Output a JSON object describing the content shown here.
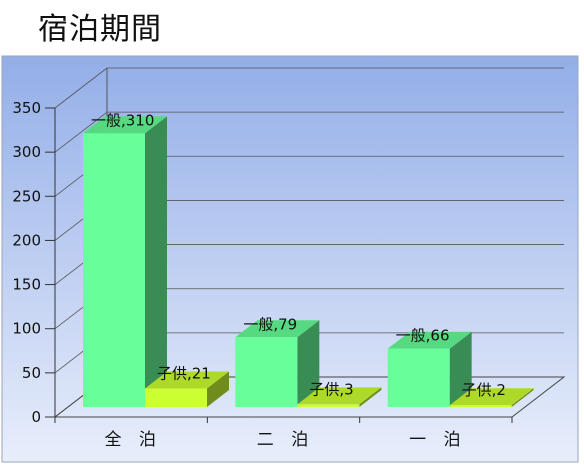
{
  "chart_data": {
    "type": "bar",
    "title": "宿泊期間",
    "categories": [
      "全 泊",
      "二 泊",
      "一 泊"
    ],
    "series": [
      {
        "name": "一般",
        "values": [
          310,
          79,
          66
        ],
        "color": "#66ff99"
      },
      {
        "name": "子供",
        "values": [
          21,
          3,
          2
        ],
        "color": "#ccff33"
      }
    ],
    "data_labels": [
      [
        "一般,310",
        "子供,21"
      ],
      [
        "一般,79",
        "子供,3"
      ],
      [
        "一般,66",
        "子供,2"
      ]
    ],
    "ylim": [
      0,
      350
    ],
    "yticks": [
      "0",
      "50",
      "100",
      "150",
      "200",
      "250",
      "300",
      "350"
    ],
    "grid": true,
    "style": "3d-bar",
    "background": [
      "#93aee8",
      "#e8eefb"
    ]
  }
}
